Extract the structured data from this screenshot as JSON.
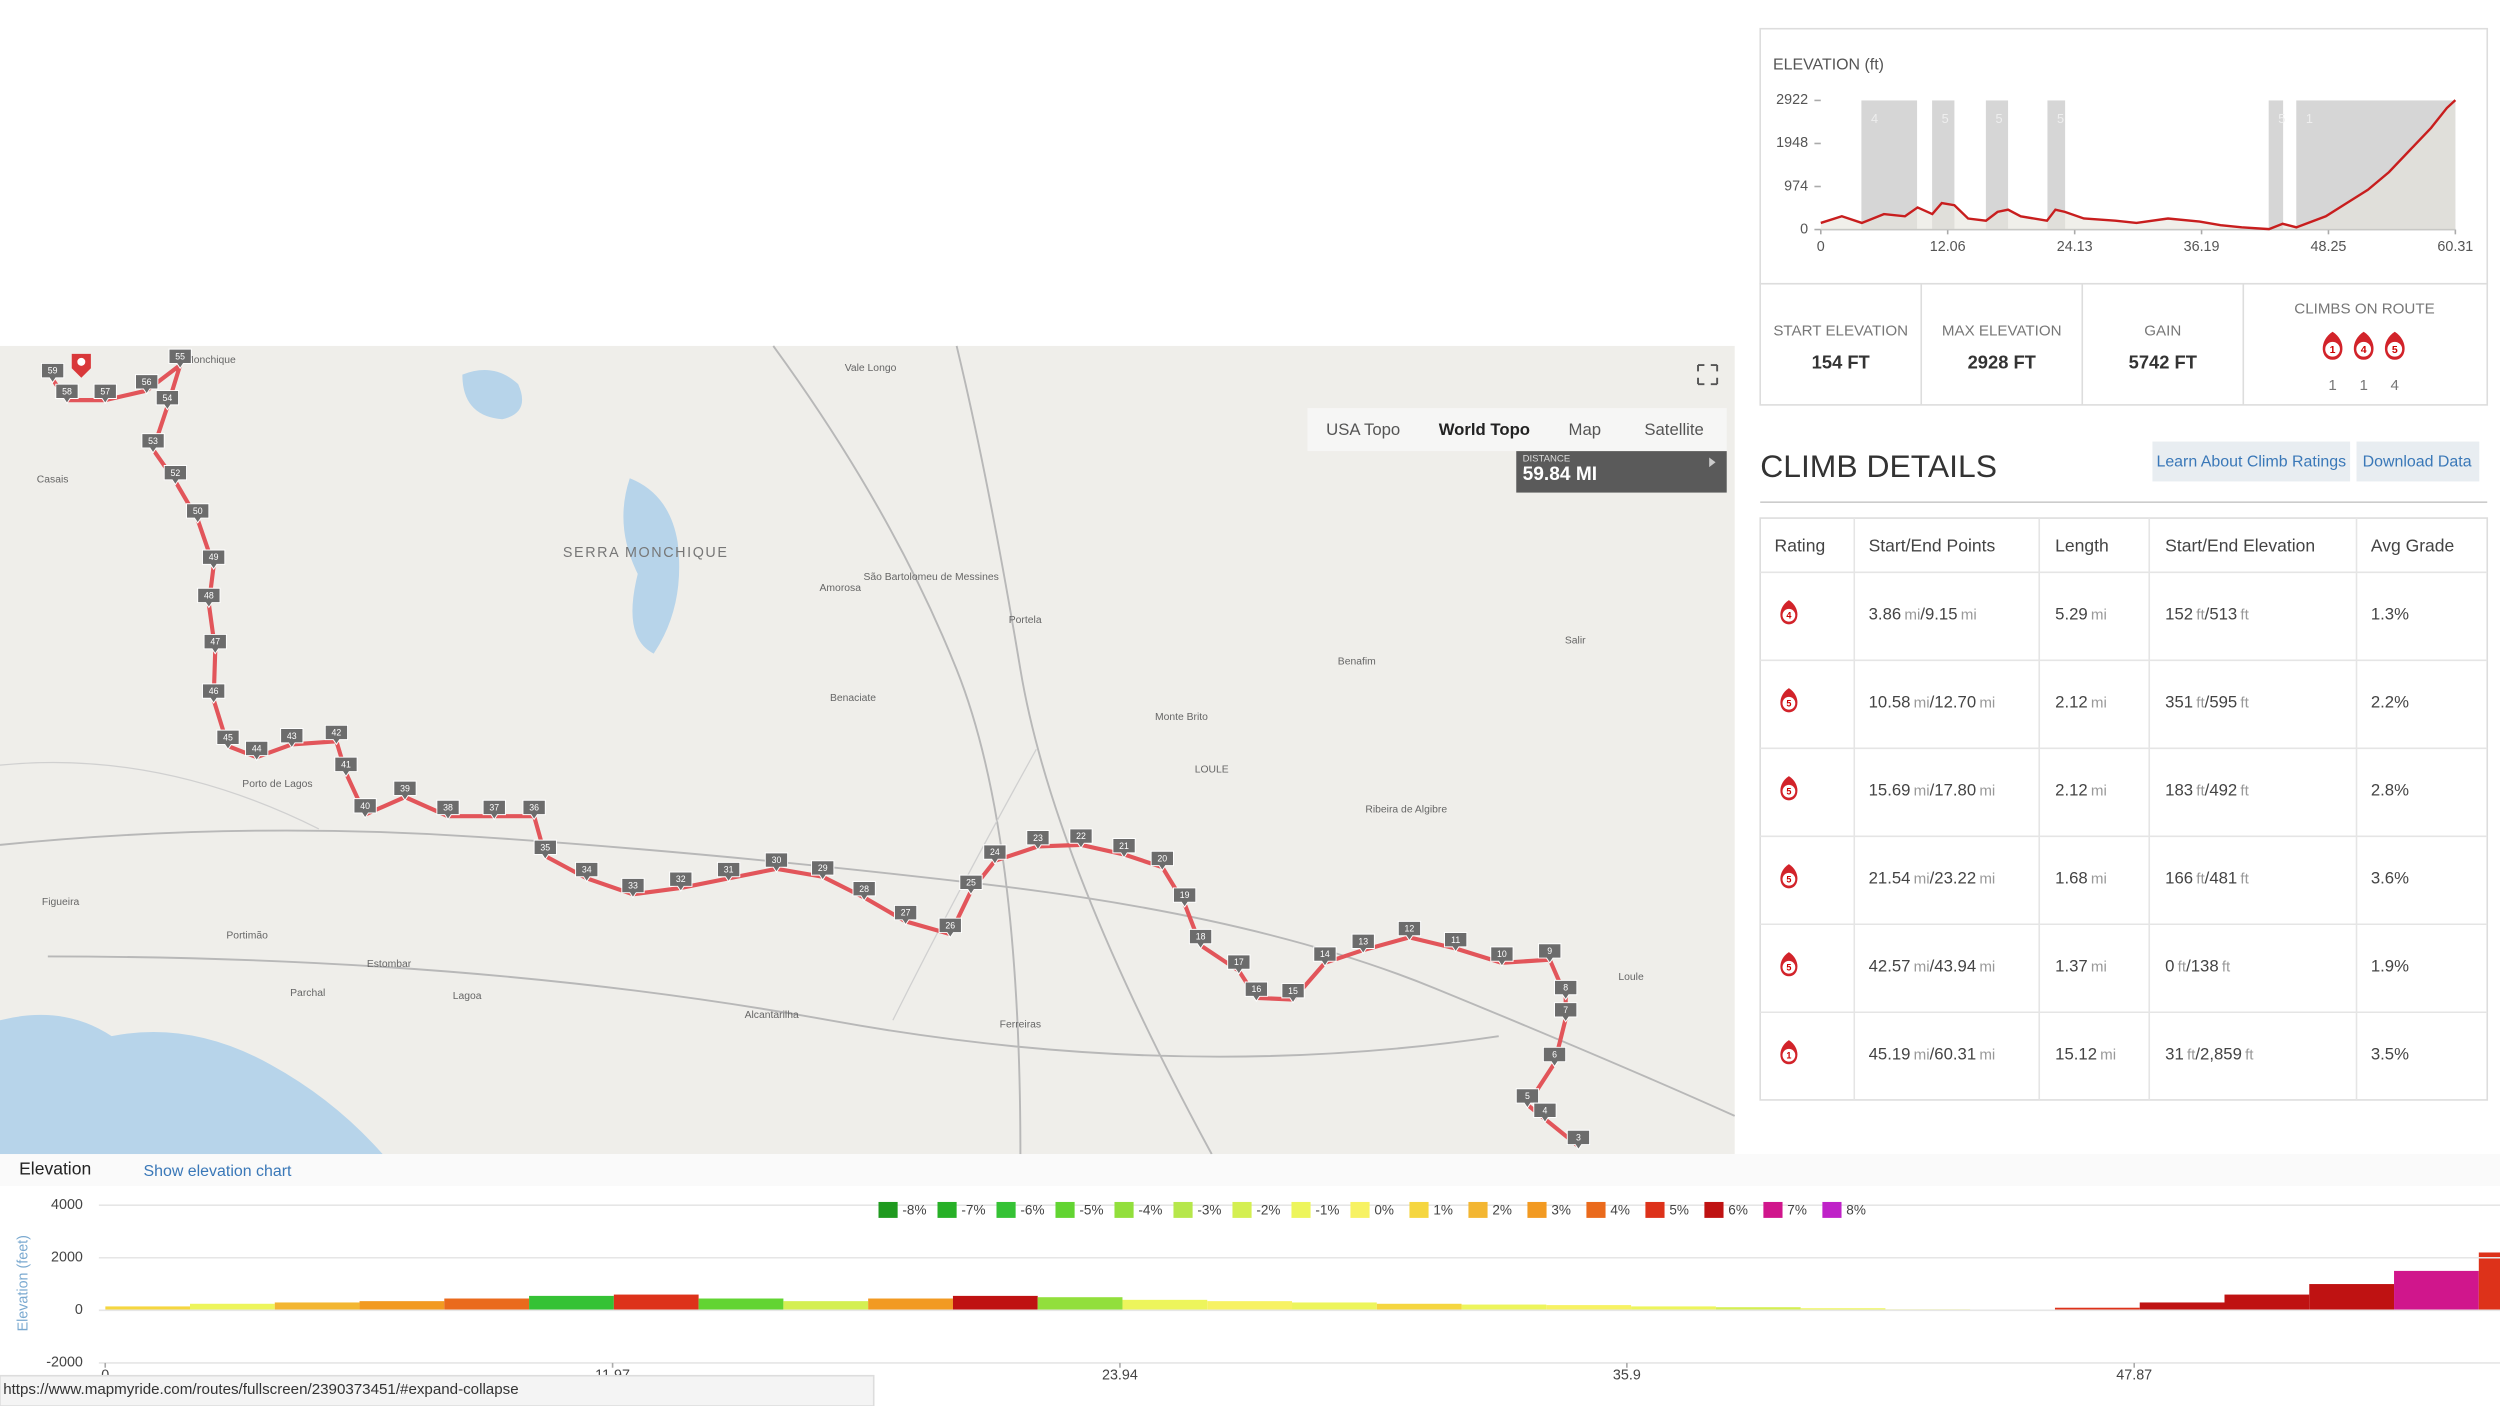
{
  "elevation_panel": {
    "chart_data": {
      "type": "line",
      "title": "ELEVATION (ft)",
      "x": [
        0,
        2,
        3.9,
        6,
        8,
        9.2,
        10.6,
        11.5,
        12.7,
        14,
        15.7,
        16.8,
        17.8,
        19,
        21.5,
        22.3,
        23.2,
        25,
        28,
        30,
        33,
        36,
        38,
        40,
        42.6,
        43.9,
        45.2,
        48,
        50,
        52,
        54,
        56,
        58,
        59.5,
        60.31
      ],
      "series": [
        {
          "color": "#c81e1e",
          "values": [
            150,
            300,
            150,
            350,
            300,
            500,
            350,
            600,
            550,
            250,
            200,
            400,
            450,
            300,
            200,
            450,
            400,
            250,
            200,
            150,
            250,
            180,
            100,
            50,
            10,
            130,
            50,
            300,
            600,
            900,
            1300,
            1800,
            2300,
            2750,
            2928
          ]
        }
      ],
      "xlim": [
        0,
        60.31
      ],
      "ylim": [
        0,
        2922
      ],
      "xticks": [
        0,
        12.06,
        24.13,
        36.19,
        48.25,
        60.31
      ],
      "yticks": [
        0,
        974,
        1948,
        2922
      ],
      "climb_band_color": "#d6d6d6",
      "area_color": "#e6e4dc"
    }
  },
  "stats": [
    {
      "label": "START ELEVATION",
      "value": "154 FT"
    },
    {
      "label": "MAX ELEVATION",
      "value": "2928 FT"
    },
    {
      "label": "GAIN",
      "value": "5742 FT"
    }
  ],
  "climbs_on_route": {
    "label": "CLIMBS ON ROUTE",
    "items": [
      {
        "rating": 1,
        "count": 1
      },
      {
        "rating": 4,
        "count": 1
      },
      {
        "rating": 5,
        "count": 4
      }
    ]
  },
  "climb_details": {
    "title": "CLIMB DETAILS",
    "buttons": [
      "Learn About Climb Ratings",
      "Download Data"
    ],
    "columns": [
      "Rating",
      "Start/End Points",
      "Length",
      "Start/End Elevation",
      "Avg Grade"
    ],
    "units": {
      "distance": "mi",
      "elevation": "ft"
    },
    "separator": "/",
    "rows": [
      {
        "rating": 4,
        "start": 3.86,
        "end": 9.15,
        "length": 5.29,
        "elev_start": 152,
        "elev_end": 513,
        "grade": "1.3%"
      },
      {
        "rating": 5,
        "start": 10.58,
        "end": {
          "value": 12.7,
          "label": "12.70"
        },
        "length": 2.12,
        "elev_start": 351,
        "elev_end": 595,
        "grade": "2.2%"
      },
      {
        "rating": 5,
        "start": 15.69,
        "end": {
          "value": 17.8,
          "label": "17.80"
        },
        "length": 2.12,
        "elev_start": 183,
        "elev_end": 492,
        "grade": "2.8%"
      },
      {
        "rating": 5,
        "start": 21.54,
        "end": 23.22,
        "length": 1.68,
        "elev_start": 166,
        "elev_end": 481,
        "grade": "3.6%"
      },
      {
        "rating": 5,
        "start": 42.57,
        "end": 43.94,
        "length": 1.37,
        "elev_start": 0,
        "elev_end": 138,
        "grade": "1.9%"
      },
      {
        "rating": 1,
        "start": 45.19,
        "end": 60.31,
        "length": 15.12,
        "elev_start": 31,
        "elev_end": {
          "value": 2859,
          "label": "2,859"
        },
        "grade": "3.5%"
      }
    ]
  },
  "map": {
    "tabs": [
      "USA Topo",
      "World Topo",
      "Map",
      "Satellite"
    ],
    "active_tab": 1,
    "distance_label": "DISTANCE",
    "distance": "59.84 MI",
    "places": [
      "SERRA MONCHIQUE",
      "Monchique",
      "Casais",
      "Vale Longo",
      "Amorosa",
      "São Bartolomeu de Messines",
      "Portela",
      "Benaciate",
      "Monte Brito",
      "LOULE",
      "Benafim",
      "Salir",
      "Porto de Lagos",
      "Figueira",
      "Portimão",
      "Parchal",
      "Estombar",
      "Lagoa",
      "Alcantarilha",
      "Ferreiras",
      "Loule",
      "Ribeira de Algibre"
    ],
    "route_markers": [
      59,
      58,
      57,
      56,
      55,
      54,
      53,
      52,
      50,
      49,
      48,
      47,
      46,
      45,
      44,
      43,
      42,
      41,
      40,
      39,
      38,
      37,
      36,
      35,
      34,
      33,
      32,
      31,
      30,
      29,
      28,
      27,
      26,
      25,
      24,
      23,
      22,
      21,
      20,
      19,
      18,
      17,
      16,
      15,
      14,
      13,
      12,
      11,
      10,
      9,
      8,
      7,
      6,
      5,
      4,
      3
    ]
  },
  "elevation_bar": {
    "title": "Elevation",
    "link": "Show elevation chart"
  },
  "grade_chart": {
    "chart_data": {
      "type": "histogram",
      "y_label": "Elevation (feet)",
      "legend": [
        {
          "value": -8,
          "label": "-8%",
          "color": "#1f9a1f"
        },
        {
          "value": -7,
          "label": "-7%",
          "color": "#27b027"
        },
        {
          "value": -6,
          "label": "-6%",
          "color": "#35c235"
        },
        {
          "value": -5,
          "label": "-5%",
          "color": "#62d432"
        },
        {
          "value": -4,
          "label": "-4%",
          "color": "#92df3c"
        },
        {
          "value": -3,
          "label": "-3%",
          "color": "#b6e74b"
        },
        {
          "value": -2,
          "label": "-2%",
          "color": "#d4ef52"
        },
        {
          "value": -1,
          "label": "-1%",
          "color": "#edf55c"
        },
        {
          "value": 0,
          "label": "0%",
          "color": "#f7f263"
        },
        {
          "value": 1,
          "label": "1%",
          "color": "#f5d640"
        },
        {
          "value": 2,
          "label": "2%",
          "color": "#f3b632"
        },
        {
          "value": 3,
          "label": "3%",
          "color": "#f29a22"
        },
        {
          "value": 4,
          "label": "4%",
          "color": "#ea6a1c"
        },
        {
          "value": 5,
          "label": "5%",
          "color": "#dd321a"
        },
        {
          "value": 6,
          "label": "6%",
          "color": "#bf1212"
        },
        {
          "value": 7,
          "label": "7%",
          "color": "#d0168c"
        },
        {
          "value": 8,
          "label": "8%",
          "color": "#bf22c8"
        }
      ],
      "bins": [
        0,
        2,
        4,
        6,
        8,
        10,
        12,
        14,
        16,
        18,
        20,
        22,
        24,
        26,
        28,
        30,
        32,
        34,
        36,
        38,
        40,
        42,
        44,
        46,
        48,
        50,
        52,
        54,
        56,
        58
      ],
      "values": [
        150,
        250,
        300,
        350,
        450,
        550,
        600,
        450,
        350,
        450,
        550,
        500,
        400,
        350,
        300,
        250,
        220,
        200,
        150,
        120,
        80,
        40,
        20,
        100,
        300,
        600,
        1000,
        1500,
        2200
      ],
      "grades": [
        1,
        -1,
        2,
        3,
        4,
        -6,
        5,
        -5,
        -2,
        3,
        6,
        -4,
        -1,
        0,
        -1,
        1,
        -1,
        0,
        -1,
        -2,
        -1,
        -1,
        0,
        5,
        6,
        6,
        6,
        7,
        5
      ],
      "xlim": [
        0,
        56.5
      ],
      "ylim": [
        -2000,
        4000
      ],
      "xticks": [
        0,
        11.97,
        23.94,
        35.9,
        47.87
      ],
      "yticks": [
        -2000,
        0,
        2000,
        4000
      ],
      "grid": true
    }
  },
  "status_url": "https://www.mapmyride.com/routes/fullscreen/2390373451/#expand-collapse"
}
